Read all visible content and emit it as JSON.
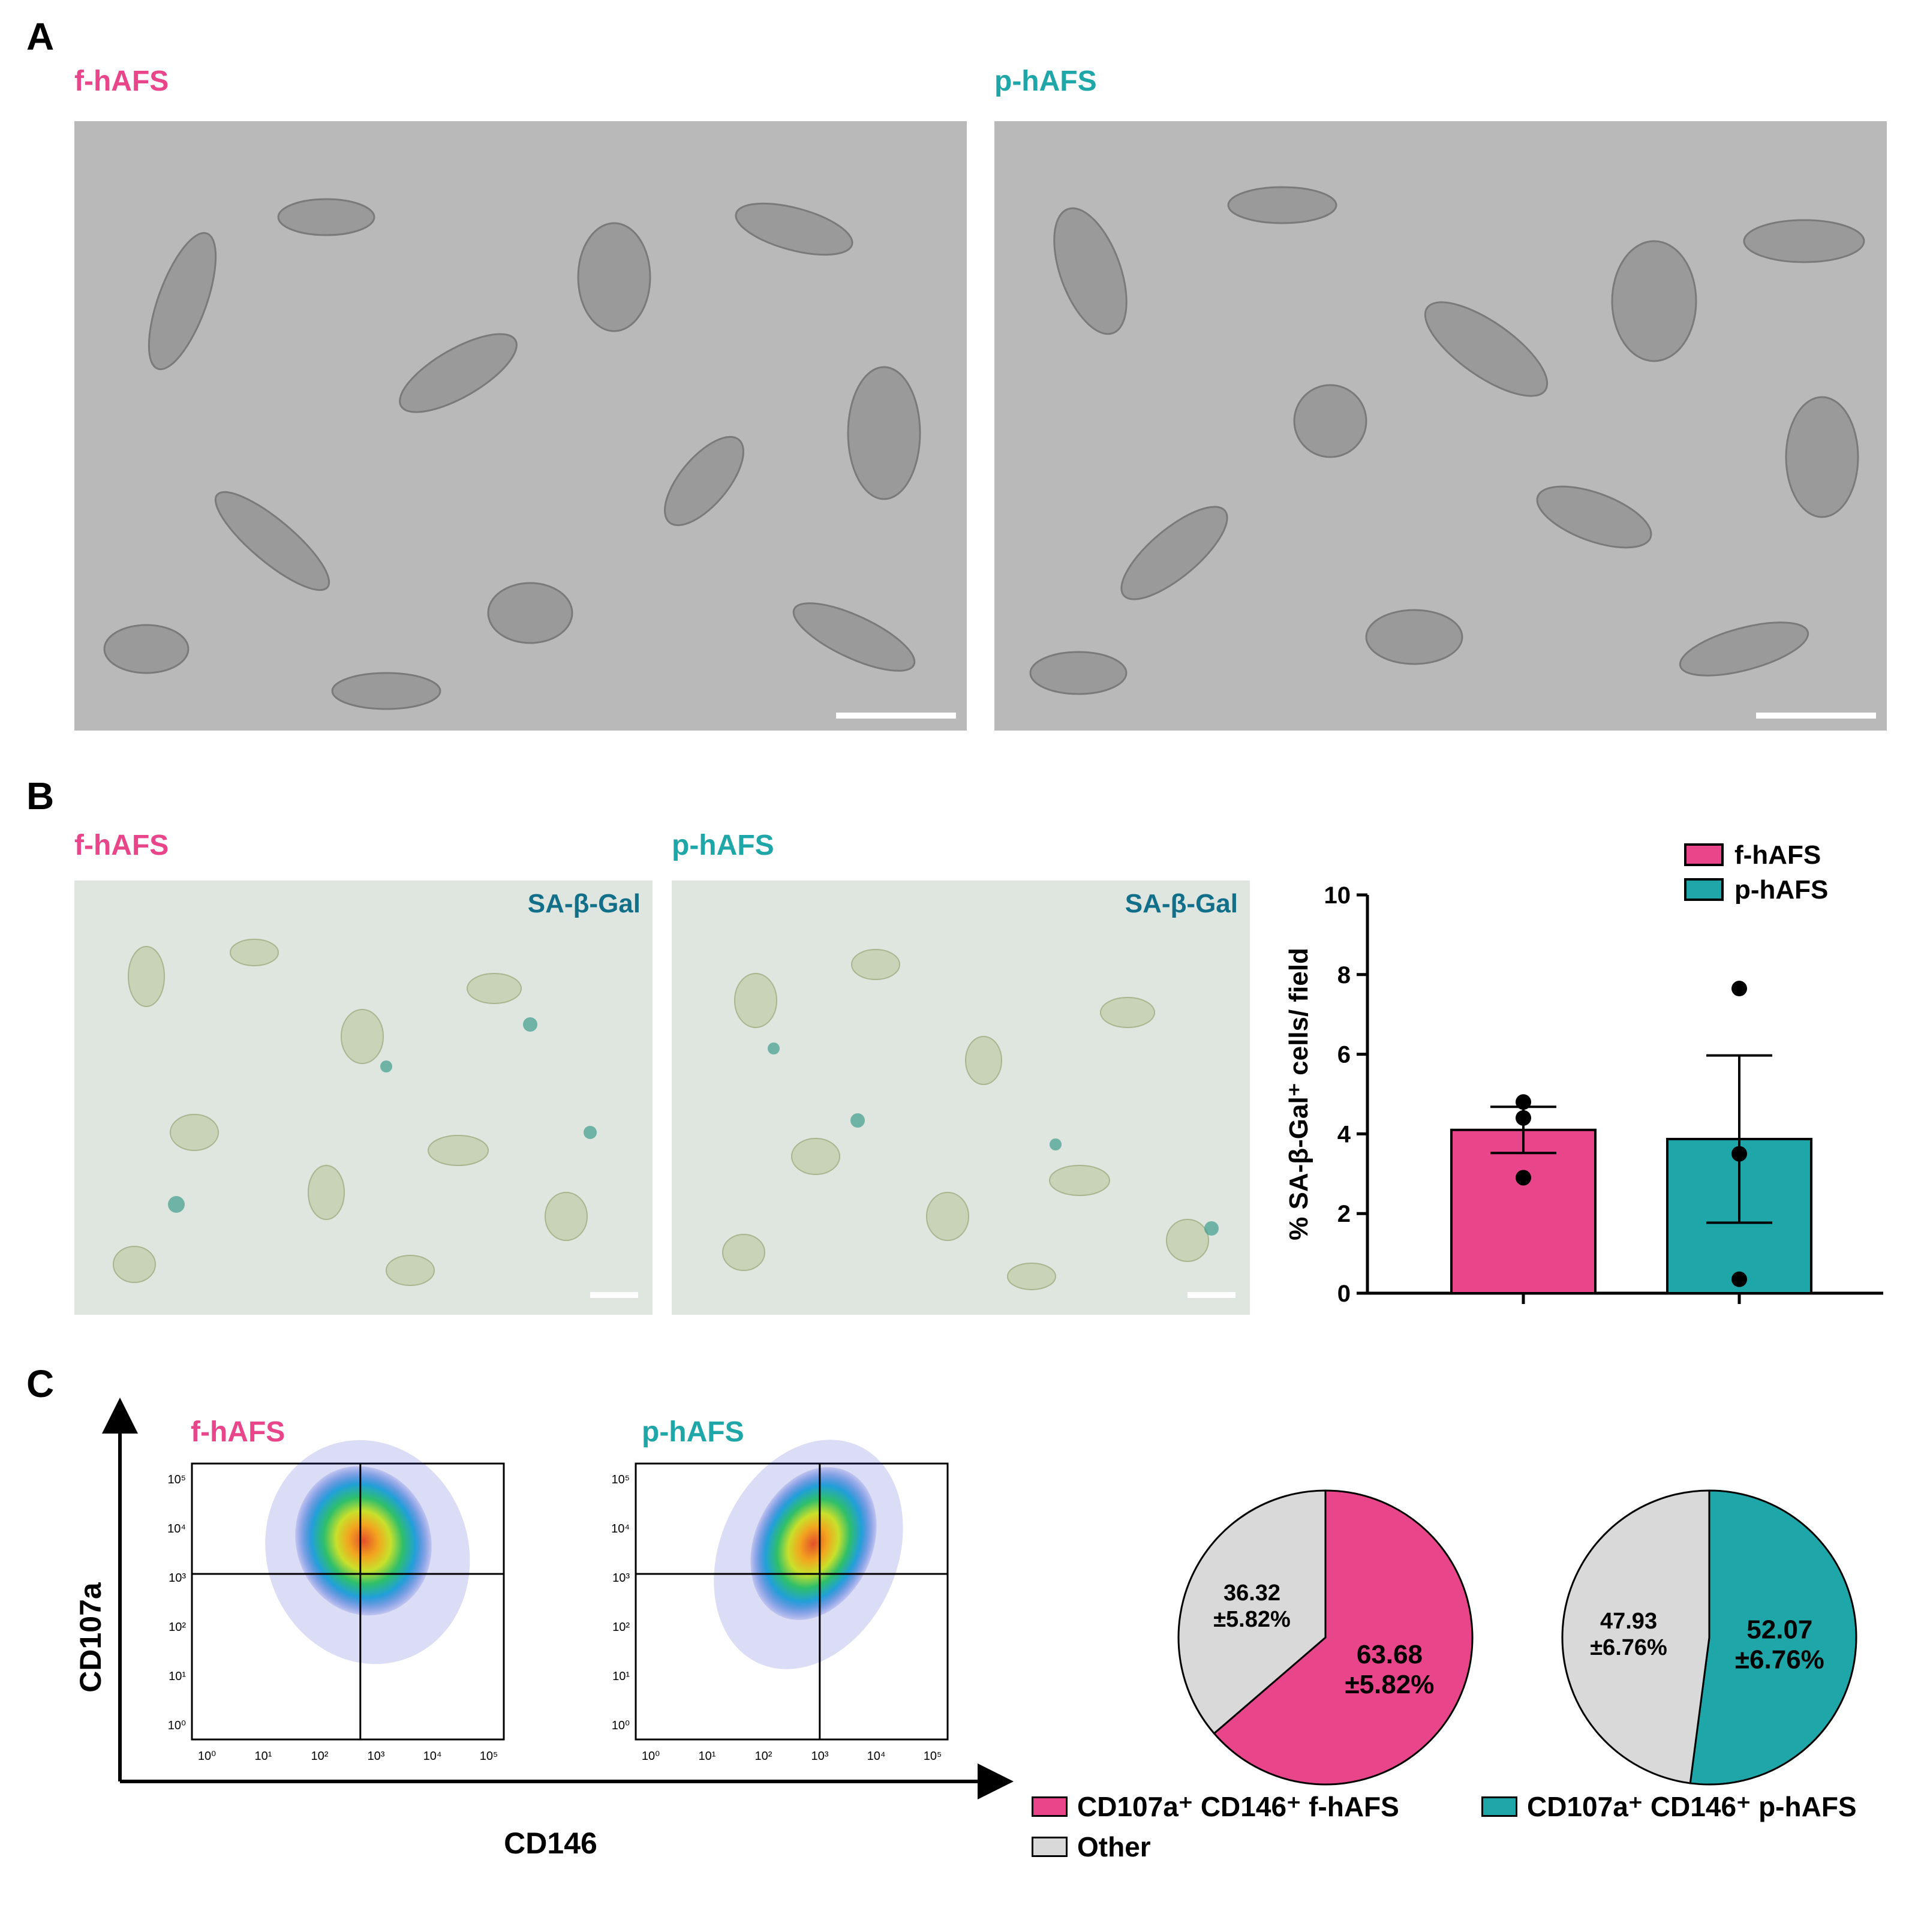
{
  "panelA": {
    "letter": "A",
    "left_label": "f-hAFS",
    "right_label": "p-hAFS"
  },
  "panelB": {
    "letter": "B",
    "left_label": "f-hAFS",
    "right_label": "p-hAFS",
    "stain_label": "SA-β-Gal",
    "chart_legend": [
      "f-hAFS",
      "p-hAFS"
    ]
  },
  "panelC": {
    "letter": "C",
    "left_label": "f-hAFS",
    "right_label": "p-hAFS",
    "y_axis_label": "CD107a",
    "x_axis_label": "CD146",
    "flow_ticks": [
      "10⁰",
      "10¹",
      "10²",
      "10³",
      "10⁴",
      "10⁵"
    ],
    "pie_legend": {
      "f": "CD107a⁺ CD146⁺ f-hAFS",
      "p": "CD107a⁺ CD146⁺ p-hAFS",
      "other": "Other"
    }
  },
  "colors": {
    "pink": "#e9458a",
    "teal": "#1fa6a8",
    "grey": "#d9d9d9",
    "stain": "#126f8a"
  },
  "chart_data": [
    {
      "type": "bar",
      "categories": [
        "f-hAFS",
        "p-hAFS"
      ],
      "values": [
        4.1,
        3.87
      ],
      "error": [
        0.58,
        2.1
      ],
      "points": [
        [
          4.8,
          4.4,
          2.9
        ],
        [
          7.65,
          3.5,
          0.35
        ]
      ],
      "ylabel": "% SA-β-Gal⁺ cells/ field",
      "ylim": [
        0,
        10
      ],
      "yticks": [
        0,
        2,
        4,
        6,
        8,
        10
      ],
      "legend": [
        "f-hAFS",
        "p-hAFS"
      ],
      "legend_position": "top-right"
    },
    {
      "type": "pie",
      "labels": [
        "CD107a⁺ CD146⁺ f-hAFS",
        "Other"
      ],
      "values": [
        63.68,
        36.32
      ],
      "value_labels": [
        "63.68",
        "36.32"
      ],
      "sd_labels": [
        "±5.82%",
        "±5.82%"
      ]
    },
    {
      "type": "pie",
      "labels": [
        "CD107a⁺ CD146⁺ p-hAFS",
        "Other"
      ],
      "values": [
        52.07,
        47.93
      ],
      "value_labels": [
        "52.07",
        "47.93"
      ],
      "sd_labels": [
        "±6.76%",
        "±6.76%"
      ]
    }
  ]
}
